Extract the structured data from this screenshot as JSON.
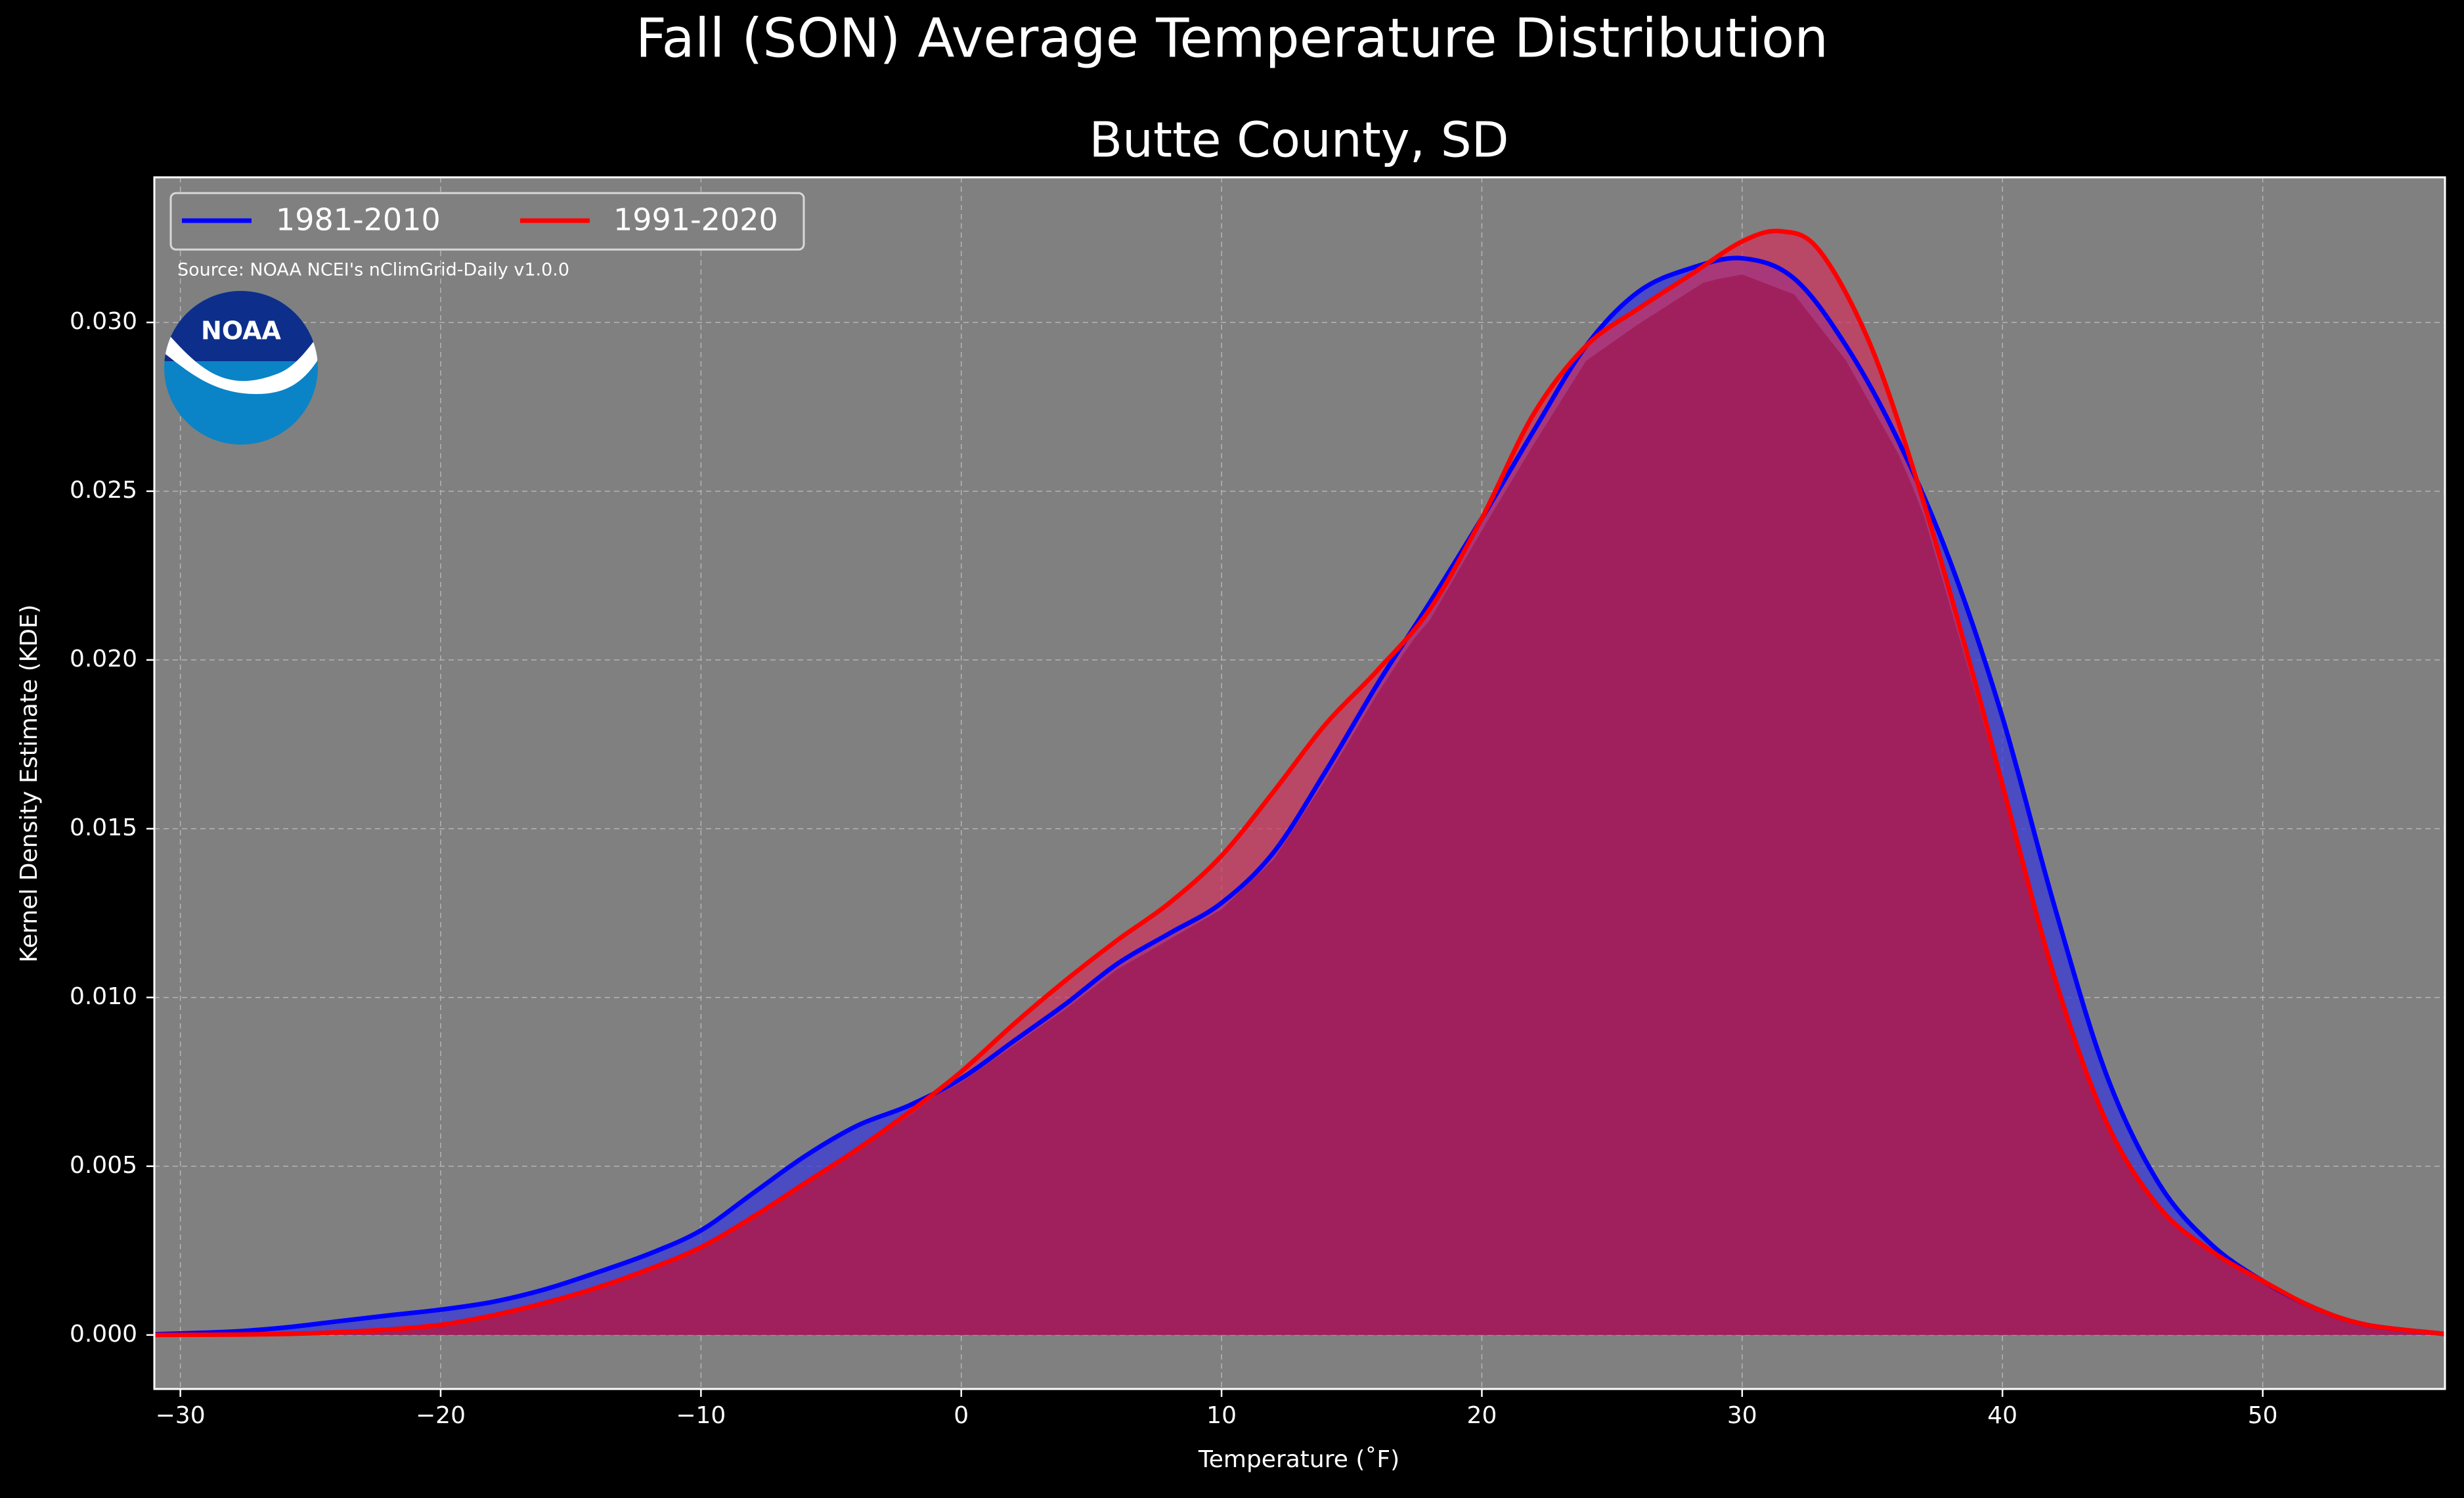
{
  "chart_data": {
    "type": "area",
    "suptitle": "Fall (SON) Average Temperature Distribution",
    "title": "Butte County, SD",
    "xlabel": "Temperature ($^\\circ$F)",
    "xlabel_display": "Temperature (˚F)",
    "ylabel": "Kernel Density Estimate (KDE)",
    "source_note": "Source: NOAA NCEI's nClimGrid-Daily v1.0.0",
    "logo_text": "NOAA",
    "xlim": [
      -31,
      57
    ],
    "ylim": [
      -0.0016,
      0.0343
    ],
    "xticks": [
      -30,
      -20,
      -10,
      0,
      10,
      20,
      30,
      40,
      50
    ],
    "xtick_labels": [
      "−30",
      "−20",
      "−10",
      "0",
      "10",
      "20",
      "30",
      "40",
      "50"
    ],
    "yticks": [
      0.0,
      0.005,
      0.01,
      0.015,
      0.02,
      0.025,
      0.03
    ],
    "ytick_labels": [
      "0.000",
      "0.005",
      "0.010",
      "0.015",
      "0.020",
      "0.025",
      "0.030"
    ],
    "grid": true,
    "legend_position": "top-left",
    "colors": {
      "figure_bg": "#000000",
      "axes_bg": "#808080",
      "grid": "#b4b4b4",
      "text": "#ffffff",
      "series_1981": "#0000ff",
      "series_1991": "#ff0000",
      "overlap_fill": "#9e1e5a"
    },
    "series": [
      {
        "name": "1981-2010",
        "color": "#0000ff",
        "x": [
          -31,
          -28,
          -26,
          -24,
          -22,
          -20,
          -18,
          -16,
          -14,
          -12,
          -10,
          -8,
          -6,
          -4,
          -2,
          0,
          2,
          4,
          6,
          8,
          10,
          12,
          14,
          16,
          18,
          20,
          22,
          24,
          26,
          28,
          30,
          32,
          34,
          36,
          38,
          40,
          42,
          44,
          46,
          48,
          50,
          52,
          54,
          57
        ],
        "y": [
          2e-05,
          0.0001,
          0.00022,
          0.0004,
          0.00058,
          0.00075,
          0.00098,
          0.00135,
          0.00185,
          0.0024,
          0.0031,
          0.0042,
          0.0053,
          0.0062,
          0.0068,
          0.0076,
          0.0087,
          0.0098,
          0.011,
          0.0119,
          0.0128,
          0.0143,
          0.0167,
          0.0193,
          0.0217,
          0.0242,
          0.0268,
          0.0293,
          0.0309,
          0.0316,
          0.0319,
          0.0313,
          0.0293,
          0.0265,
          0.0229,
          0.0183,
          0.0127,
          0.0077,
          0.0045,
          0.0027,
          0.0016,
          0.0008,
          0.0003,
          3e-05
        ]
      },
      {
        "name": "1991-2020",
        "color": "#ff0000",
        "x": [
          -31,
          -28,
          -26,
          -24,
          -22,
          -20,
          -18,
          -16,
          -14,
          -12,
          -10,
          -8,
          -6,
          -4,
          -2,
          0,
          2,
          4,
          6,
          8,
          10,
          12,
          14,
          16,
          18,
          20,
          22,
          24,
          26,
          28,
          30,
          31.5,
          33,
          35,
          37,
          39,
          40,
          42,
          44,
          46,
          48,
          50,
          52,
          54,
          57
        ],
        "y": [
          0.0,
          1e-05,
          3e-05,
          8e-05,
          0.00016,
          0.0003,
          0.00058,
          0.00095,
          0.0014,
          0.00195,
          0.0026,
          0.0035,
          0.0045,
          0.0055,
          0.0066,
          0.0078,
          0.0092,
          0.0105,
          0.0117,
          0.0128,
          0.0142,
          0.0161,
          0.0181,
          0.0197,
          0.0215,
          0.0242,
          0.0273,
          0.0293,
          0.0304,
          0.0314,
          0.0324,
          0.0327,
          0.0321,
          0.0292,
          0.0246,
          0.0192,
          0.0163,
          0.0106,
          0.0063,
          0.0038,
          0.0025,
          0.0016,
          0.0008,
          0.0003,
          3e-05
        ]
      }
    ]
  }
}
